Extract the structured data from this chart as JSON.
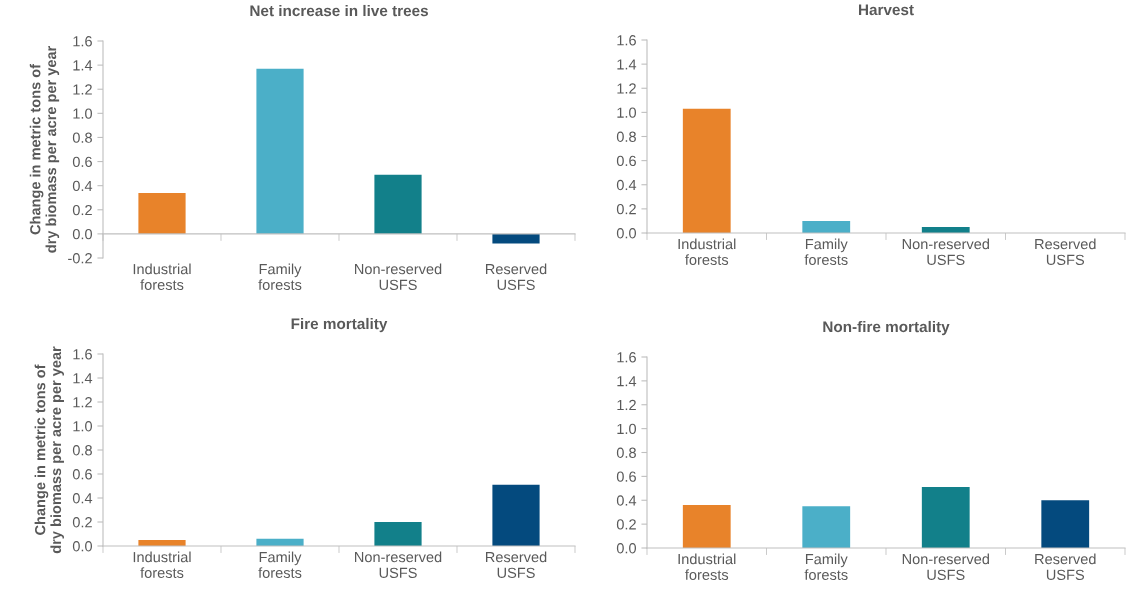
{
  "chart_data": [
    {
      "type": "bar",
      "title": "Net increase in live trees",
      "ylabel": "Change in metric tons of\ndry biomass per acre per year",
      "categories": [
        "Industrial\nforests",
        "Family\nforests",
        "Non-reserved\nUSFS",
        "Reserved\nUSFS"
      ],
      "values": [
        0.34,
        1.37,
        0.49,
        -0.08
      ],
      "colors": [
        "#e8832a",
        "#4bafc8",
        "#12808a",
        "#044a7e"
      ],
      "ylim": [
        -0.2,
        1.6
      ],
      "yticks": [
        {
          "value": -0.2,
          "label": "-0.2"
        },
        {
          "value": 0,
          "label": "0.0"
        },
        0.2,
        0.4,
        0.6,
        0.8,
        {
          "value": 1.0,
          "label": "1.0"
        },
        1.2,
        1.4,
        1.6
      ],
      "grid": false,
      "legend": false
    },
    {
      "type": "bar",
      "title": "Harvest",
      "categories": [
        "Industrial\nforests",
        "Family\nforests",
        "Non-reserved\nUSFS",
        "Reserved\nUSFS"
      ],
      "values": [
        1.03,
        0.1,
        0.05,
        0
      ],
      "colors": [
        "#e8832a",
        "#4bafc8",
        "#12808a",
        "#044a7e"
      ],
      "ylim": [
        0,
        1.6
      ],
      "yticks": [
        {
          "value": 0,
          "label": "0.0"
        },
        0.2,
        0.4,
        0.6,
        0.8,
        {
          "value": 1.0,
          "label": "1.0"
        },
        1.2,
        1.4,
        1.6
      ],
      "grid": false,
      "legend": false
    },
    {
      "type": "bar",
      "title": "Fire mortality",
      "ylabel": "Change in metric tons of\ndry biomass per acre per year",
      "categories": [
        "Industrial\nforests",
        "Family\nforests",
        "Non-reserved\nUSFS",
        "Reserved\nUSFS"
      ],
      "values": [
        0.05,
        0.06,
        0.2,
        0.51
      ],
      "colors": [
        "#e8832a",
        "#4bafc8",
        "#12808a",
        "#044a7e"
      ],
      "ylim": [
        0,
        1.6
      ],
      "yticks": [
        {
          "value": 0,
          "label": "0.0"
        },
        0.2,
        0.4,
        0.6,
        0.8,
        {
          "value": 1.0,
          "label": "1.0"
        },
        1.2,
        1.4,
        1.6
      ],
      "grid": false,
      "legend": false
    },
    {
      "type": "bar",
      "title": "Non-fire mortality",
      "categories": [
        "Industrial\nforests",
        "Family\nforests",
        "Non-reserved\nUSFS",
        "Reserved\nUSFS"
      ],
      "values": [
        0.36,
        0.35,
        0.51,
        0.4
      ],
      "colors": [
        "#e8832a",
        "#4bafc8",
        "#12808a",
        "#044a7e"
      ],
      "ylim": [
        0,
        1.6
      ],
      "yticks": [
        {
          "value": 0,
          "label": "0.0"
        },
        0.2,
        0.4,
        0.6,
        0.8,
        {
          "value": 1.0,
          "label": "1.0"
        },
        1.2,
        1.4,
        1.6
      ],
      "grid": false,
      "legend": false
    }
  ]
}
